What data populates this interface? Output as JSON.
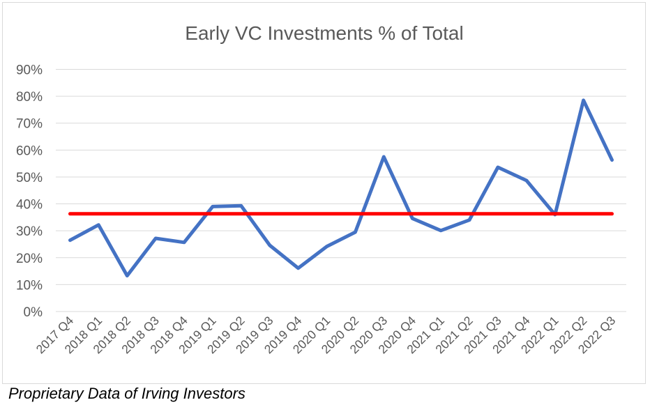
{
  "chart_data": {
    "type": "line",
    "title": "Early VC Investments % of Total",
    "xlabel": "",
    "ylabel": "",
    "categories": [
      "2017 Q4",
      "2018 Q1",
      "2018 Q2",
      "2018 Q3",
      "2018 Q4",
      "2019 Q1",
      "2019 Q2",
      "2019 Q3",
      "2019 Q4",
      "2020 Q1",
      "2020 Q2",
      "2020 Q3",
      "2020 Q4",
      "2021 Q1",
      "2021 Q2",
      "2021 Q3",
      "2021 Q4",
      "2022 Q1",
      "2022 Q2",
      "2022 Q3"
    ],
    "series": [
      {
        "values": [
          26.5,
          32.2,
          13.3,
          27.2,
          25.7,
          39.0,
          39.3,
          24.6,
          16.1,
          24.2,
          29.5,
          57.5,
          34.6,
          30.1,
          34.0,
          53.6,
          48.7,
          36.0,
          78.5,
          56.3
        ],
        "color": "#4472c4"
      },
      {
        "values": [
          36.3,
          36.3,
          36.3,
          36.3,
          36.3,
          36.3,
          36.3,
          36.3,
          36.3,
          36.3,
          36.3,
          36.3,
          36.3,
          36.3,
          36.3,
          36.3,
          36.3,
          36.3,
          36.3,
          36.3
        ],
        "color": "#ff0000"
      }
    ],
    "yticks": [
      "0%",
      "10%",
      "20%",
      "30%",
      "40%",
      "50%",
      "60%",
      "70%",
      "80%",
      "90%"
    ],
    "ylim": [
      0,
      90
    ],
    "grid": true,
    "legend": "none"
  },
  "footnote": "Proprietary Data of Irving Investors"
}
